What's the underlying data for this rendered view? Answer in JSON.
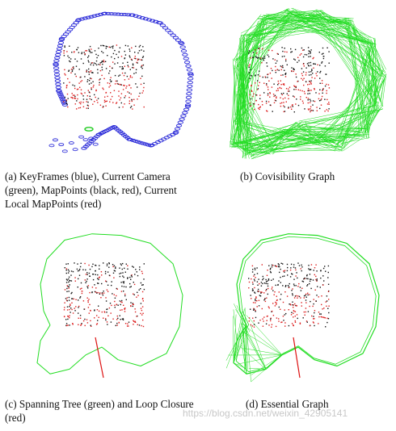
{
  "captions": {
    "a": "(a) KeyFrames (blue), Current Camera (green), MapPoints (black, red), Current Local MapPoints (red)",
    "b": "(b) Covisibility Graph",
    "c": "(c) Spanning Tree (green) and Loop Closure (red)",
    "d": "(d) Essential Graph"
  },
  "watermark": "https://blog.csdn.net/weixin_42905141",
  "colors": {
    "keyframes": "#2a2ad8",
    "graph_green": "#22dd22",
    "map_black": "#141414",
    "map_red": "#dd2020",
    "loop_red": "#dd1010"
  }
}
